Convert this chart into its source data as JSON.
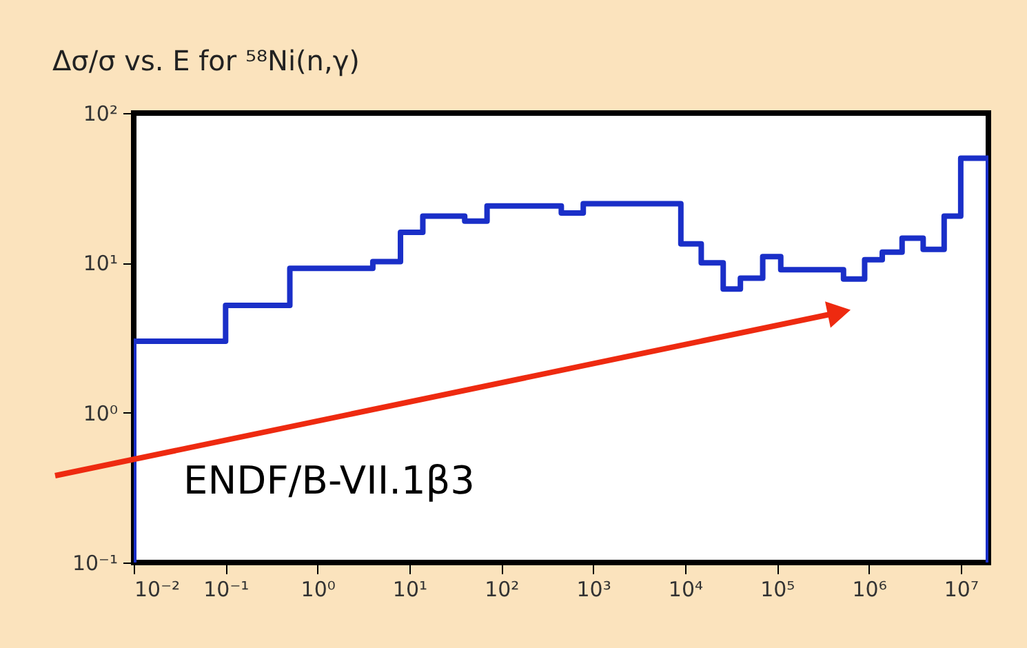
{
  "chart_data": {
    "type": "step",
    "title": "Δσ/σ vs. E for ⁵⁸Ni(n,γ)",
    "log": "xy",
    "grid": false,
    "marker": "none",
    "annotations": [
      "ENDF/B-VII.1β3"
    ],
    "xlim": [
      0.01,
      20000000
    ],
    "ylim": [
      0.1,
      100
    ],
    "xticks": [
      {
        "value": 0.01,
        "label": "10⁻²"
      },
      {
        "value": 0.1,
        "label": "10⁻¹"
      },
      {
        "value": 1,
        "label": "10⁰"
      },
      {
        "value": 10,
        "label": "10¹"
      },
      {
        "value": 100,
        "label": "10²"
      },
      {
        "value": 1000,
        "label": "10³"
      },
      {
        "value": 10000,
        "label": "10⁴"
      },
      {
        "value": 100000,
        "label": "10⁵"
      },
      {
        "value": 1000000,
        "label": "10⁶"
      },
      {
        "value": 10000000,
        "label": "10⁷"
      }
    ],
    "yticks": [
      {
        "value": 0.1,
        "label": "10⁻¹"
      },
      {
        "value": 1,
        "label": "10⁰"
      },
      {
        "value": 10,
        "label": "10¹"
      },
      {
        "value": 100,
        "label": "10²"
      }
    ],
    "x": [
      0.01,
      0.01,
      0.1,
      0.5,
      4,
      8,
      14,
      40,
      70,
      450,
      780,
      9000,
      15000,
      26000,
      40000,
      70000,
      110000,
      530000,
      900000,
      1400000,
      2300000,
      3900000,
      6600000,
      10000000,
      20000000,
      20000000
    ],
    "series": [
      {
        "color": "#1a2fc8",
        "values": [
          0.1,
          3.0,
          5.2,
          9.2,
          10.2,
          16,
          20.5,
          19,
          24,
          21.5,
          24.8,
          13.4,
          10,
          6.7,
          7.9,
          11,
          9.0,
          7.8,
          10.5,
          11.8,
          14.6,
          12.3,
          20.5,
          50,
          50,
          0.1
        ]
      }
    ]
  }
}
